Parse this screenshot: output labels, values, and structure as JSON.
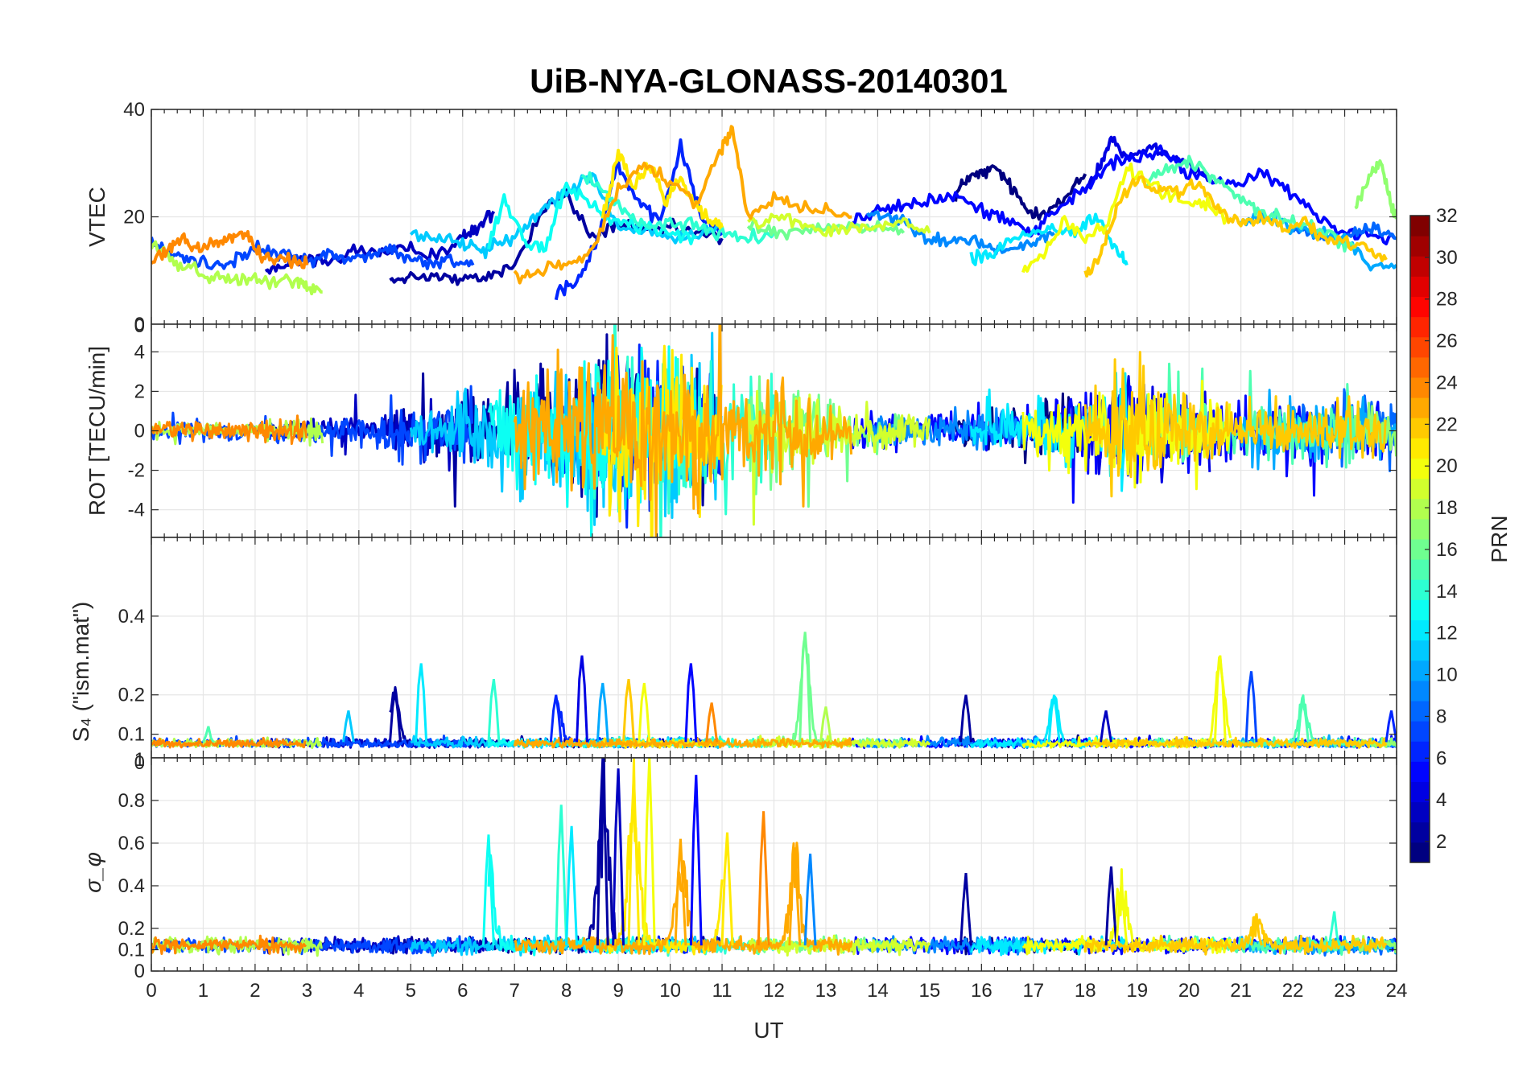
{
  "figure": {
    "title": "UiB-NYA-GLONASS-20140301",
    "xlabel": "UT"
  },
  "colorbar": {
    "label": "PRN",
    "colormap": "jet",
    "range": [
      1,
      32
    ],
    "ticks": [
      "2",
      "4",
      "6",
      "8",
      "10",
      "12",
      "14",
      "16",
      "18",
      "20",
      "22",
      "24",
      "26",
      "28",
      "30",
      "32"
    ]
  },
  "chart_data": [
    {
      "type": "line",
      "panel": "vtec",
      "ylabel": "VTEC",
      "xlim": [
        0,
        24
      ],
      "ylim": [
        0,
        40
      ],
      "yticks": [
        "20",
        "40"
      ],
      "yticks_values": [
        20,
        40
      ],
      "grid": true,
      "series": [
        {
          "prn": 1,
          "x": [
            15.5,
            15.7,
            16.0,
            16.3,
            16.6,
            16.9,
            17.2,
            17.6,
            18.0
          ],
          "y": [
            24,
            27,
            28,
            29,
            25,
            21,
            21,
            23,
            28
          ]
        },
        {
          "prn": 2,
          "x": [
            4.6,
            5.0,
            5.5,
            6.0,
            6.5,
            7.0,
            7.6,
            8.0,
            8.5,
            9.0,
            9.5,
            10.0,
            10.5,
            11.0
          ],
          "y": [
            8,
            9,
            9,
            8,
            9,
            11,
            22,
            24,
            16,
            19,
            17,
            18,
            17,
            16
          ]
        },
        {
          "prn": 3,
          "x": [
            2.2,
            2.6,
            3.0,
            3.5,
            4.0,
            4.5,
            5.0,
            5.5,
            6.0,
            6.3,
            6.6
          ],
          "y": [
            10,
            11,
            12,
            12,
            14,
            13,
            14,
            13,
            16,
            18,
            21
          ]
        },
        {
          "prn": 4,
          "x": [
            18.0,
            18.3,
            18.5,
            18.8,
            19.2,
            19.6,
            20.0,
            20.4
          ],
          "y": [
            25,
            30,
            35,
            31,
            33,
            32,
            30,
            27
          ]
        },
        {
          "prn": 5,
          "x": [
            13.5,
            14.0,
            14.5,
            15.0,
            15.5,
            16.0,
            16.5,
            17.0,
            17.5,
            18.0,
            18.5,
            19.0,
            19.5,
            20.0,
            20.5,
            21.0,
            21.5,
            22.0,
            22.5,
            23.0,
            23.5,
            24.0
          ],
          "y": [
            19,
            21,
            22,
            23,
            24,
            21,
            20,
            17,
            22,
            25,
            30,
            31,
            32,
            28,
            27,
            26,
            28,
            24,
            20,
            17,
            17,
            16
          ]
        },
        {
          "prn": 6,
          "x": [
            7.8,
            8.2,
            8.6,
            9.0,
            9.4,
            9.8,
            10.2,
            10.6,
            11.0
          ],
          "y": [
            6,
            8,
            16,
            30,
            22,
            19,
            33,
            20,
            17
          ]
        },
        {
          "prn": 7,
          "x": [
            0.0,
            0.4,
            0.8,
            1.2,
            1.6,
            2.0,
            2.5,
            3.0,
            3.4,
            3.8,
            4.2,
            4.6,
            5.0,
            5.4,
            5.8,
            6.2
          ],
          "y": [
            15,
            13,
            12,
            11,
            12,
            14,
            13,
            12,
            13,
            12,
            13,
            14,
            12,
            11,
            12,
            11
          ]
        },
        {
          "prn": 8,
          "x": [
            22.0,
            22.4,
            22.8,
            23.2,
            23.6,
            24.0
          ],
          "y": [
            18,
            17,
            16,
            17,
            18,
            16
          ]
        },
        {
          "prn": 9,
          "x": [
            13.8,
            14.2,
            14.6,
            15.0,
            15.4,
            15.8,
            16.2,
            16.6,
            17.0,
            17.4
          ],
          "y": [
            21,
            20,
            19,
            16,
            15,
            16,
            14,
            14,
            15,
            17
          ]
        },
        {
          "prn": 10,
          "x": [
            21.0,
            21.5,
            22.0,
            22.5,
            23.0,
            23.5,
            24.0
          ],
          "y": [
            19,
            20,
            18,
            17,
            16,
            11,
            11
          ]
        },
        {
          "prn": 11,
          "x": [
            5.0,
            5.5,
            6.0,
            6.4,
            6.8,
            7.2,
            7.6,
            8.0,
            8.5,
            9.0,
            9.5,
            10.0,
            10.5,
            11.0
          ],
          "y": [
            17,
            16,
            15,
            14,
            15,
            18,
            22,
            25,
            28,
            18,
            17,
            16,
            17,
            18
          ]
        },
        {
          "prn": 12,
          "x": [
            15.8,
            16.2,
            16.6,
            17.0,
            17.4,
            17.8,
            18.2,
            18.6,
            18.8
          ],
          "y": [
            12,
            13,
            16,
            17,
            18,
            17,
            20,
            14,
            11
          ]
        },
        {
          "prn": 13,
          "x": [
            6.5,
            6.8,
            7.2,
            7.6,
            8.0,
            8.5,
            9.0,
            9.5,
            10.0,
            10.5
          ],
          "y": [
            14,
            24,
            15,
            14,
            26,
            22,
            19,
            18,
            17,
            16
          ]
        },
        {
          "prn": 14,
          "x": [
            8.3,
            8.8,
            9.2,
            9.6,
            10.0,
            10.5,
            11.0,
            11.5,
            12.0
          ],
          "y": [
            28,
            24,
            20,
            18,
            19,
            18,
            17,
            16,
            17
          ]
        },
        {
          "prn": 15,
          "x": [
            19.2,
            19.6,
            20.0,
            20.4,
            20.8,
            21.2,
            21.6,
            22.0,
            22.4,
            22.8,
            23.2
          ],
          "y": [
            27,
            29,
            30,
            28,
            25,
            22,
            20,
            19,
            18,
            16,
            14
          ]
        },
        {
          "prn": 16,
          "x": [
            11.5,
            12.0,
            12.5,
            13.0,
            13.5,
            14.0,
            14.5
          ],
          "y": [
            19,
            17,
            17,
            18,
            18,
            18,
            17
          ]
        },
        {
          "prn": 17,
          "x": [
            23.2,
            23.5,
            23.7,
            23.9,
            24.0
          ],
          "y": [
            22,
            28,
            30,
            22,
            20
          ]
        },
        {
          "prn": 18,
          "x": [
            0.0,
            0.4,
            0.8,
            1.2,
            1.6,
            2.0,
            2.4,
            2.8,
            3.0,
            3.3
          ],
          "y": [
            15,
            12,
            10,
            9,
            8,
            9,
            8,
            8,
            7,
            6
          ]
        },
        {
          "prn": 19,
          "x": [
            11.5,
            12.0,
            12.5,
            13.0,
            13.5,
            14.0,
            14.5,
            15.0
          ],
          "y": [
            19,
            20,
            19,
            17,
            18,
            18,
            19,
            17
          ]
        },
        {
          "prn": 20,
          "x": [
            16.8,
            17.2,
            17.6,
            18.0,
            18.4,
            18.8,
            19.2,
            19.6,
            20.0,
            20.4,
            20.8
          ],
          "y": [
            10,
            13,
            19,
            16,
            18,
            29,
            27,
            24,
            23,
            22,
            19
          ]
        },
        {
          "prn": 21,
          "x": [
            8.7,
            9.0,
            9.3,
            9.6,
            9.9,
            10.2,
            10.5,
            10.8,
            11.0
          ],
          "y": [
            20,
            32,
            25,
            30,
            23,
            27,
            22,
            19,
            18
          ]
        },
        {
          "prn": 22,
          "x": [
            18.0,
            18.3,
            18.6,
            19.0,
            19.4,
            19.8,
            20.2,
            20.6,
            21.0,
            21.4,
            21.8,
            22.2,
            22.6,
            23.0,
            23.4,
            23.8
          ],
          "y": [
            9,
            13,
            22,
            27,
            25,
            25,
            26,
            21,
            19,
            20,
            18,
            19,
            16,
            15,
            14,
            12
          ]
        },
        {
          "prn": 23,
          "x": [
            7.0,
            7.5,
            8.0,
            8.5,
            9.0,
            9.5,
            10.0,
            10.5,
            11.0,
            11.2,
            11.5,
            12.0,
            12.5,
            13.0,
            13.5
          ],
          "y": [
            9,
            10,
            11,
            14,
            25,
            30,
            26,
            23,
            33,
            36,
            20,
            24,
            22,
            21,
            20
          ]
        },
        {
          "prn": 24,
          "x": [
            0.0,
            0.3,
            0.6,
            0.9,
            1.2,
            1.5,
            1.8,
            2.1,
            2.4,
            2.7,
            3.0
          ],
          "y": [
            12,
            14,
            16,
            14,
            15,
            16,
            17,
            13,
            12,
            12,
            11
          ]
        }
      ]
    },
    {
      "type": "line",
      "panel": "rot",
      "ylabel": "ROT [TECU/min]",
      "xlim": [
        0,
        24
      ],
      "ylim": [
        -5.4,
        5.4
      ],
      "yticks": [
        "-4",
        "-2",
        "0",
        "2",
        "4"
      ],
      "yticks_values": [
        -4,
        -2,
        0,
        2,
        4
      ],
      "grid": true,
      "envelope": [
        {
          "x": 0,
          "amp": 0.6
        },
        {
          "x": 2,
          "amp": 0.7
        },
        {
          "x": 3.5,
          "amp": 1.0
        },
        {
          "x": 4.5,
          "amp": 1.5
        },
        {
          "x": 5.5,
          "amp": 1.8
        },
        {
          "x": 6.5,
          "amp": 3.5
        },
        {
          "x": 7.5,
          "amp": 4.5
        },
        {
          "x": 8.5,
          "amp": 5.5
        },
        {
          "x": 9.5,
          "amp": 5.5
        },
        {
          "x": 10.5,
          "amp": 5.0
        },
        {
          "x": 11.5,
          "amp": 4.0
        },
        {
          "x": 12.5,
          "amp": 3.0
        },
        {
          "x": 13.5,
          "amp": 1.5
        },
        {
          "x": 15,
          "amp": 1.2
        },
        {
          "x": 16.5,
          "amp": 1.5
        },
        {
          "x": 18,
          "amp": 2.5
        },
        {
          "x": 18.7,
          "amp": 4.5
        },
        {
          "x": 20,
          "amp": 2.5
        },
        {
          "x": 21.5,
          "amp": 2.0
        },
        {
          "x": 23,
          "amp": 2.2
        },
        {
          "x": 24,
          "amp": 2.0
        }
      ]
    },
    {
      "type": "line",
      "panel": "s4",
      "ylabel": "S₄ (\"ism.mat\")",
      "xlim": [
        0,
        24
      ],
      "ylim": [
        0.04,
        0.6
      ],
      "yticks": [
        "0.1",
        "0.2",
        "0.4"
      ],
      "yticks_values": [
        0.1,
        0.2,
        0.4
      ],
      "grid": true,
      "baseline": 0.07,
      "spikes": [
        {
          "x": 1.1,
          "y": 0.12,
          "prn": 15
        },
        {
          "x": 3.8,
          "y": 0.16,
          "prn": 11
        },
        {
          "x": 4.7,
          "y": 0.21,
          "prn": 2
        },
        {
          "x": 5.2,
          "y": 0.28,
          "prn": 12
        },
        {
          "x": 6.6,
          "y": 0.24,
          "prn": 14
        },
        {
          "x": 7.8,
          "y": 0.2,
          "prn": 6
        },
        {
          "x": 8.3,
          "y": 0.3,
          "prn": 4
        },
        {
          "x": 8.7,
          "y": 0.23,
          "prn": 10
        },
        {
          "x": 9.2,
          "y": 0.24,
          "prn": 22
        },
        {
          "x": 9.5,
          "y": 0.23,
          "prn": 20
        },
        {
          "x": 10.4,
          "y": 0.28,
          "prn": 5
        },
        {
          "x": 10.8,
          "y": 0.18,
          "prn": 24
        },
        {
          "x": 12.6,
          "y": 0.36,
          "prn": 16
        },
        {
          "x": 13.0,
          "y": 0.17,
          "prn": 18
        },
        {
          "x": 15.7,
          "y": 0.2,
          "prn": 2
        },
        {
          "x": 17.4,
          "y": 0.2,
          "prn": 12
        },
        {
          "x": 18.4,
          "y": 0.16,
          "prn": 3
        },
        {
          "x": 20.6,
          "y": 0.3,
          "prn": 20
        },
        {
          "x": 21.2,
          "y": 0.26,
          "prn": 7
        },
        {
          "x": 22.2,
          "y": 0.19,
          "prn": 15
        },
        {
          "x": 23.9,
          "y": 0.16,
          "prn": 6
        }
      ]
    },
    {
      "type": "line",
      "panel": "sigma_phi",
      "ylabel": "σ_φ",
      "xlim": [
        0,
        24
      ],
      "ylim": [
        0,
        1
      ],
      "yticks": [
        "0",
        "0.1",
        "0.2",
        "0.4",
        "0.6",
        "0.8"
      ],
      "yticks_values": [
        0,
        0.1,
        0.2,
        0.4,
        0.6,
        0.8
      ],
      "top_tick": "1",
      "grid": true,
      "baseline": 0.12,
      "spikes": [
        {
          "x": 6.5,
          "y": 0.64,
          "prn": 13
        },
        {
          "x": 7.9,
          "y": 0.78,
          "prn": 14
        },
        {
          "x": 8.1,
          "y": 0.68,
          "prn": 12
        },
        {
          "x": 8.7,
          "y": 1.0,
          "prn": 2
        },
        {
          "x": 9.0,
          "y": 0.95,
          "prn": 3
        },
        {
          "x": 9.3,
          "y": 0.92,
          "prn": 21
        },
        {
          "x": 9.6,
          "y": 1.0,
          "prn": 20
        },
        {
          "x": 10.2,
          "y": 0.62,
          "prn": 23
        },
        {
          "x": 10.5,
          "y": 0.92,
          "prn": 5
        },
        {
          "x": 11.1,
          "y": 0.65,
          "prn": 21
        },
        {
          "x": 11.8,
          "y": 0.75,
          "prn": 24
        },
        {
          "x": 12.4,
          "y": 0.58,
          "prn": 23
        },
        {
          "x": 12.7,
          "y": 0.55,
          "prn": 9
        },
        {
          "x": 15.7,
          "y": 0.46,
          "prn": 2
        },
        {
          "x": 18.5,
          "y": 0.49,
          "prn": 2
        },
        {
          "x": 18.7,
          "y": 0.42,
          "prn": 20
        },
        {
          "x": 21.3,
          "y": 0.27,
          "prn": 22
        },
        {
          "x": 22.8,
          "y": 0.28,
          "prn": 14
        }
      ]
    }
  ]
}
